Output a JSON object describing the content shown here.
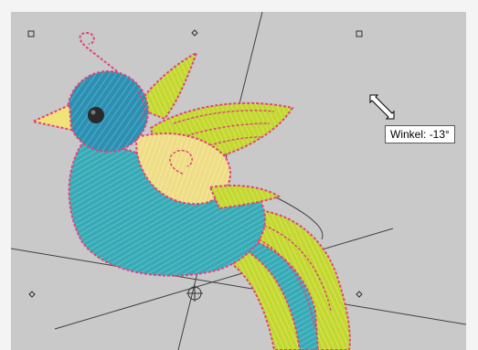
{
  "tooltip": {
    "label": "Winkel:",
    "value": "-13°"
  },
  "cursor": {
    "icon": "diagonal-resize-cursor-icon"
  },
  "colors": {
    "canvas": "#c9c9c9",
    "stitch_outline": "#e0457a",
    "head_blue": "#2f8fb0",
    "body_teal": "#3aaeb8",
    "wing_lime": "#c8dc3a",
    "belly_cream": "#f0e08a",
    "beak": "#f2e27a",
    "guide_line": "#404040"
  }
}
